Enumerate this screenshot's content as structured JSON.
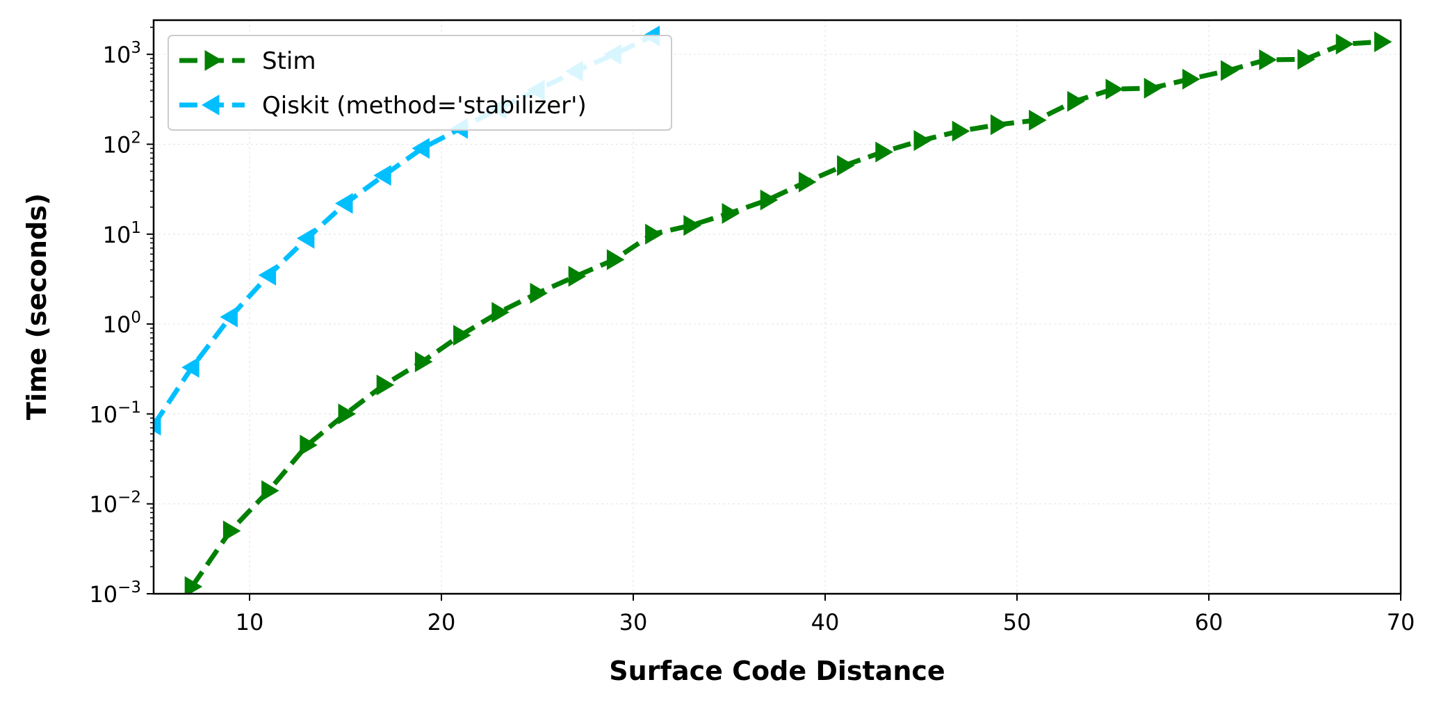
{
  "chart_data": {
    "type": "line",
    "xlabel": "Surface Code Distance",
    "ylabel": "Time (seconds)",
    "xlim": [
      5,
      70
    ],
    "ylim": [
      0.001,
      2400
    ],
    "yscale": "log",
    "grid": true,
    "legend_position": "top-left",
    "x_ticks": [
      10,
      20,
      30,
      40,
      50,
      60,
      70
    ],
    "y_ticks": [
      {
        "value": 0.001,
        "exp": "−3"
      },
      {
        "value": 0.01,
        "exp": "−2"
      },
      {
        "value": 0.1,
        "exp": "−1"
      },
      {
        "value": 1,
        "exp": "0"
      },
      {
        "value": 10,
        "exp": "1"
      },
      {
        "value": 100,
        "exp": "2"
      },
      {
        "value": 1000,
        "exp": "3"
      }
    ],
    "tick_base": "10",
    "series": [
      {
        "name": "Stim",
        "color": "#008000",
        "marker": "triangle-right",
        "x": [
          7,
          9,
          11,
          13,
          15,
          17,
          19,
          21,
          23,
          25,
          27,
          29,
          31,
          33,
          35,
          37,
          39,
          41,
          43,
          45,
          47,
          49,
          51,
          53,
          55,
          57,
          59,
          61,
          63,
          65,
          67,
          69
        ],
        "y": [
          0.0012,
          0.005,
          0.014,
          0.045,
          0.1,
          0.21,
          0.38,
          0.75,
          1.35,
          2.2,
          3.4,
          5.2,
          10,
          12.5,
          17,
          24,
          38,
          58,
          82,
          110,
          140,
          165,
          185,
          300,
          410,
          420,
          530,
          660,
          870,
          880,
          1300,
          1380
        ]
      },
      {
        "name": "Qiskit (method='stabilizer')",
        "color": "#00BFFF",
        "marker": "triangle-left",
        "x": [
          5,
          7,
          9,
          11,
          13,
          15,
          17,
          19,
          21,
          23,
          25,
          27,
          29,
          31
        ],
        "y": [
          0.075,
          0.33,
          1.2,
          3.5,
          9,
          22,
          45,
          90,
          150,
          250,
          400,
          650,
          1000,
          1600
        ]
      }
    ]
  }
}
